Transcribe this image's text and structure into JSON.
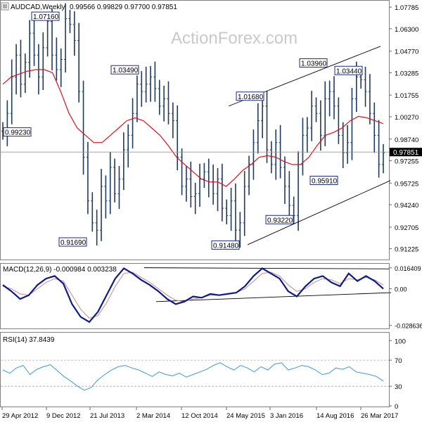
{
  "header": {
    "symbol": "AUDCAD,Weekly",
    "ohlc": "0.99566 0.99829 0.97700 0.97851"
  },
  "watermark": "ActionForex.com",
  "colors": {
    "price_bars": "#1f3b5e",
    "sma": "#e0101a",
    "macd": "#0c1a8c",
    "signal": "#c48a8a",
    "rsi": "#3a9ad9",
    "trendline": "#000000",
    "label_border": "#1a2a8a",
    "current_price_bg": "#000000"
  },
  "price_panel": {
    "ylim": [
      0.9063,
      1.0808
    ],
    "ticks": [
      "1.07785",
      "1.06300",
      "1.04770",
      "1.03285",
      "1.01755",
      "1.00270",
      "0.98740",
      "0.97255",
      "0.95725",
      "0.94240",
      "0.92705",
      "0.91225"
    ],
    "current_price": "0.97851",
    "annotations": [
      "1.07160",
      "1.03490",
      "0.99230",
      "0.91690",
      "0.91480",
      "0.93220",
      "1.01680",
      "1.03960",
      "1.03440",
      "0.95910"
    ]
  },
  "macd_panel": {
    "title": "MACD(12,26,9) -0.000984 0.003238",
    "ylim": [
      -0.0305,
      0.0185
    ],
    "ticks": [
      "0.016409",
      "0.00",
      "-0.028636"
    ]
  },
  "rsi_panel": {
    "title": "RSI(14) 37.8439",
    "ylim": [
      0,
      110
    ],
    "ticks": [
      "100",
      "70",
      "30",
      "0"
    ],
    "levels": [
      70,
      30
    ]
  },
  "x_axis": {
    "ticks": [
      "29 Apr 2012",
      "9 Dec 2012",
      "21 Jul 2013",
      "2 Mar 2014",
      "12 Oct 2014",
      "24 May 2015",
      "3 Jan 2016",
      "14 Aug 2016",
      "26 Mar 2017"
    ]
  },
  "chart_data": {
    "type": "line",
    "title": "AUDCAD,Weekly",
    "x_start": "29 Apr 2012",
    "x_end": "Apr 2017",
    "price_close": [
      0.993,
      1.005,
      1.03,
      1.045,
      1.025,
      1.04,
      1.06,
      1.045,
      1.03,
      1.05,
      1.068,
      1.045,
      1.035,
      1.042,
      1.07,
      1.066,
      1.055,
      1.02,
      0.975,
      0.945,
      0.93,
      0.925,
      0.955,
      0.945,
      0.968,
      0.95,
      0.96,
      0.98,
      0.99,
      1.005,
      1.025,
      1.02,
      1.025,
      1.03,
      1.022,
      1.01,
      1.015,
      1.005,
      1.0,
      0.975,
      0.955,
      0.96,
      0.948,
      0.95,
      0.96,
      0.965,
      0.958,
      0.95,
      0.96,
      0.94,
      0.935,
      0.945,
      0.925,
      0.93,
      0.955,
      0.97,
      0.985,
      1.0,
      1.01,
      0.98,
      0.97,
      0.985,
      0.968,
      0.955,
      0.942,
      0.935,
      0.97,
      0.99,
      0.995,
      1.01,
      1.005,
      0.99,
      1.015,
      1.02,
      1.01,
      0.99,
      0.978,
      0.985,
      1.015,
      1.03,
      1.028,
      1.02,
      1.005,
      0.99,
      0.97,
      0.978
    ],
    "sma": [
      1.025,
      1.03,
      1.032,
      1.034,
      1.035,
      1.035,
      1.033,
      1.02,
      1.005,
      0.995,
      0.99,
      0.985,
      0.985,
      0.99,
      0.995,
      1.0,
      1.002,
      1.0,
      0.995,
      0.99,
      0.983,
      0.975,
      0.97,
      0.965,
      0.96,
      0.958,
      0.958,
      0.955,
      0.96,
      0.966,
      0.97,
      0.975,
      0.976,
      0.975,
      0.972,
      0.97,
      0.97,
      0.975,
      0.983,
      0.99,
      0.992,
      0.995,
      1.0,
      1.003,
      1.002,
      1.0,
      0.998
    ],
    "macd": [
      0.003,
      -0.002,
      -0.008,
      -0.005,
      0.003,
      0.008,
      0.01,
      0.004,
      -0.012,
      -0.022,
      -0.026,
      -0.018,
      -0.005,
      0.008,
      0.016,
      0.012,
      0.007,
      0.003,
      -0.002,
      -0.008,
      -0.012,
      -0.01,
      -0.006,
      -0.007,
      -0.004,
      -0.005,
      -0.004,
      -0.003,
      0.002,
      0.01,
      0.016,
      0.012,
      0.008,
      -0.002,
      -0.006,
      0.002,
      0.008,
      0.01,
      0.005,
      0.002,
      0.012,
      0.006,
      0.01,
      0.006,
      0.0
    ],
    "signal": [
      0.002,
      0.0,
      -0.004,
      -0.005,
      0.0,
      0.005,
      0.008,
      0.006,
      -0.005,
      -0.016,
      -0.023,
      -0.021,
      -0.011,
      0.002,
      0.012,
      0.013,
      0.009,
      0.005,
      0.0,
      -0.005,
      -0.009,
      -0.01,
      -0.008,
      -0.007,
      -0.005,
      -0.005,
      -0.004,
      -0.003,
      0.0,
      0.006,
      0.012,
      0.013,
      0.01,
      0.003,
      -0.002,
      0.0,
      0.005,
      0.008,
      0.007,
      0.004,
      0.008,
      0.007,
      0.009,
      0.007,
      0.003
    ],
    "rsi": [
      55,
      50,
      58,
      62,
      48,
      56,
      60,
      63,
      54,
      45,
      38,
      30,
      24,
      28,
      40,
      48,
      55,
      60,
      62,
      58,
      55,
      50,
      45,
      52,
      48,
      46,
      50,
      44,
      48,
      52,
      56,
      62,
      66,
      60,
      55,
      62,
      58,
      52,
      60,
      55,
      64,
      66,
      55,
      58,
      62,
      60,
      55,
      48,
      50,
      58,
      56,
      60,
      52,
      50,
      48,
      45,
      38
    ],
    "ylabel": "",
    "grid": false,
    "legend": "none"
  }
}
